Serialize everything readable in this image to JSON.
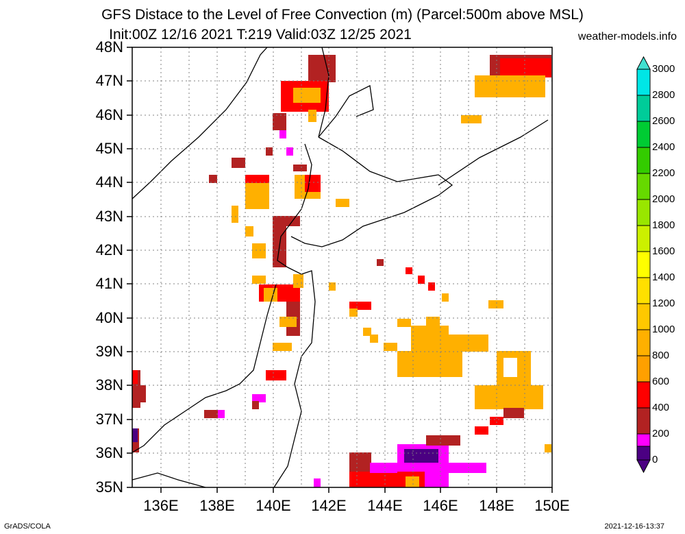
{
  "title_line1": "GFS Distace to the Level of Free Convection (m) (Parcel:500m above MSL)",
  "title_line2": "Init:00Z 12/16 2021 T:219 Valid:03Z 12/25 2021",
  "site": "weather-models.info",
  "footer_left": "GrADS/COLA",
  "footer_right": "2021-12-16-13:37",
  "lat_labels": [
    "48N",
    "47N",
    "46N",
    "45N",
    "44N",
    "43N",
    "42N",
    "41N",
    "40N",
    "39N",
    "38N",
    "37N",
    "36N",
    "35N"
  ],
  "lon_labels": [
    "136E",
    "138E",
    "140E",
    "142E",
    "144E",
    "146E",
    "148E",
    "150E"
  ],
  "colorbar": {
    "labels": [
      "3000",
      "2800",
      "2600",
      "2400",
      "2200",
      "2000",
      "1800",
      "1600",
      "1400",
      "1200",
      "1000",
      "800",
      "600",
      "400",
      "200",
      "0"
    ],
    "colors_top_to_bottom": [
      "#00e6e6",
      "#00cc99",
      "#00cc33",
      "#33cc00",
      "#66d900",
      "#99e600",
      "#ccf000",
      "#ffff00",
      "#ffe000",
      "#ffc800",
      "#ffb000",
      "#ffa000",
      "#ff0000",
      "#b22222",
      "#ff00ff",
      "#4b0082"
    ],
    "cap_top_color": "#40e0d0",
    "cap_bottom_color": "#4b0082"
  },
  "map": {
    "lat_range": [
      35,
      48
    ],
    "lon_range": [
      135,
      150
    ],
    "grid": "dotted"
  }
}
